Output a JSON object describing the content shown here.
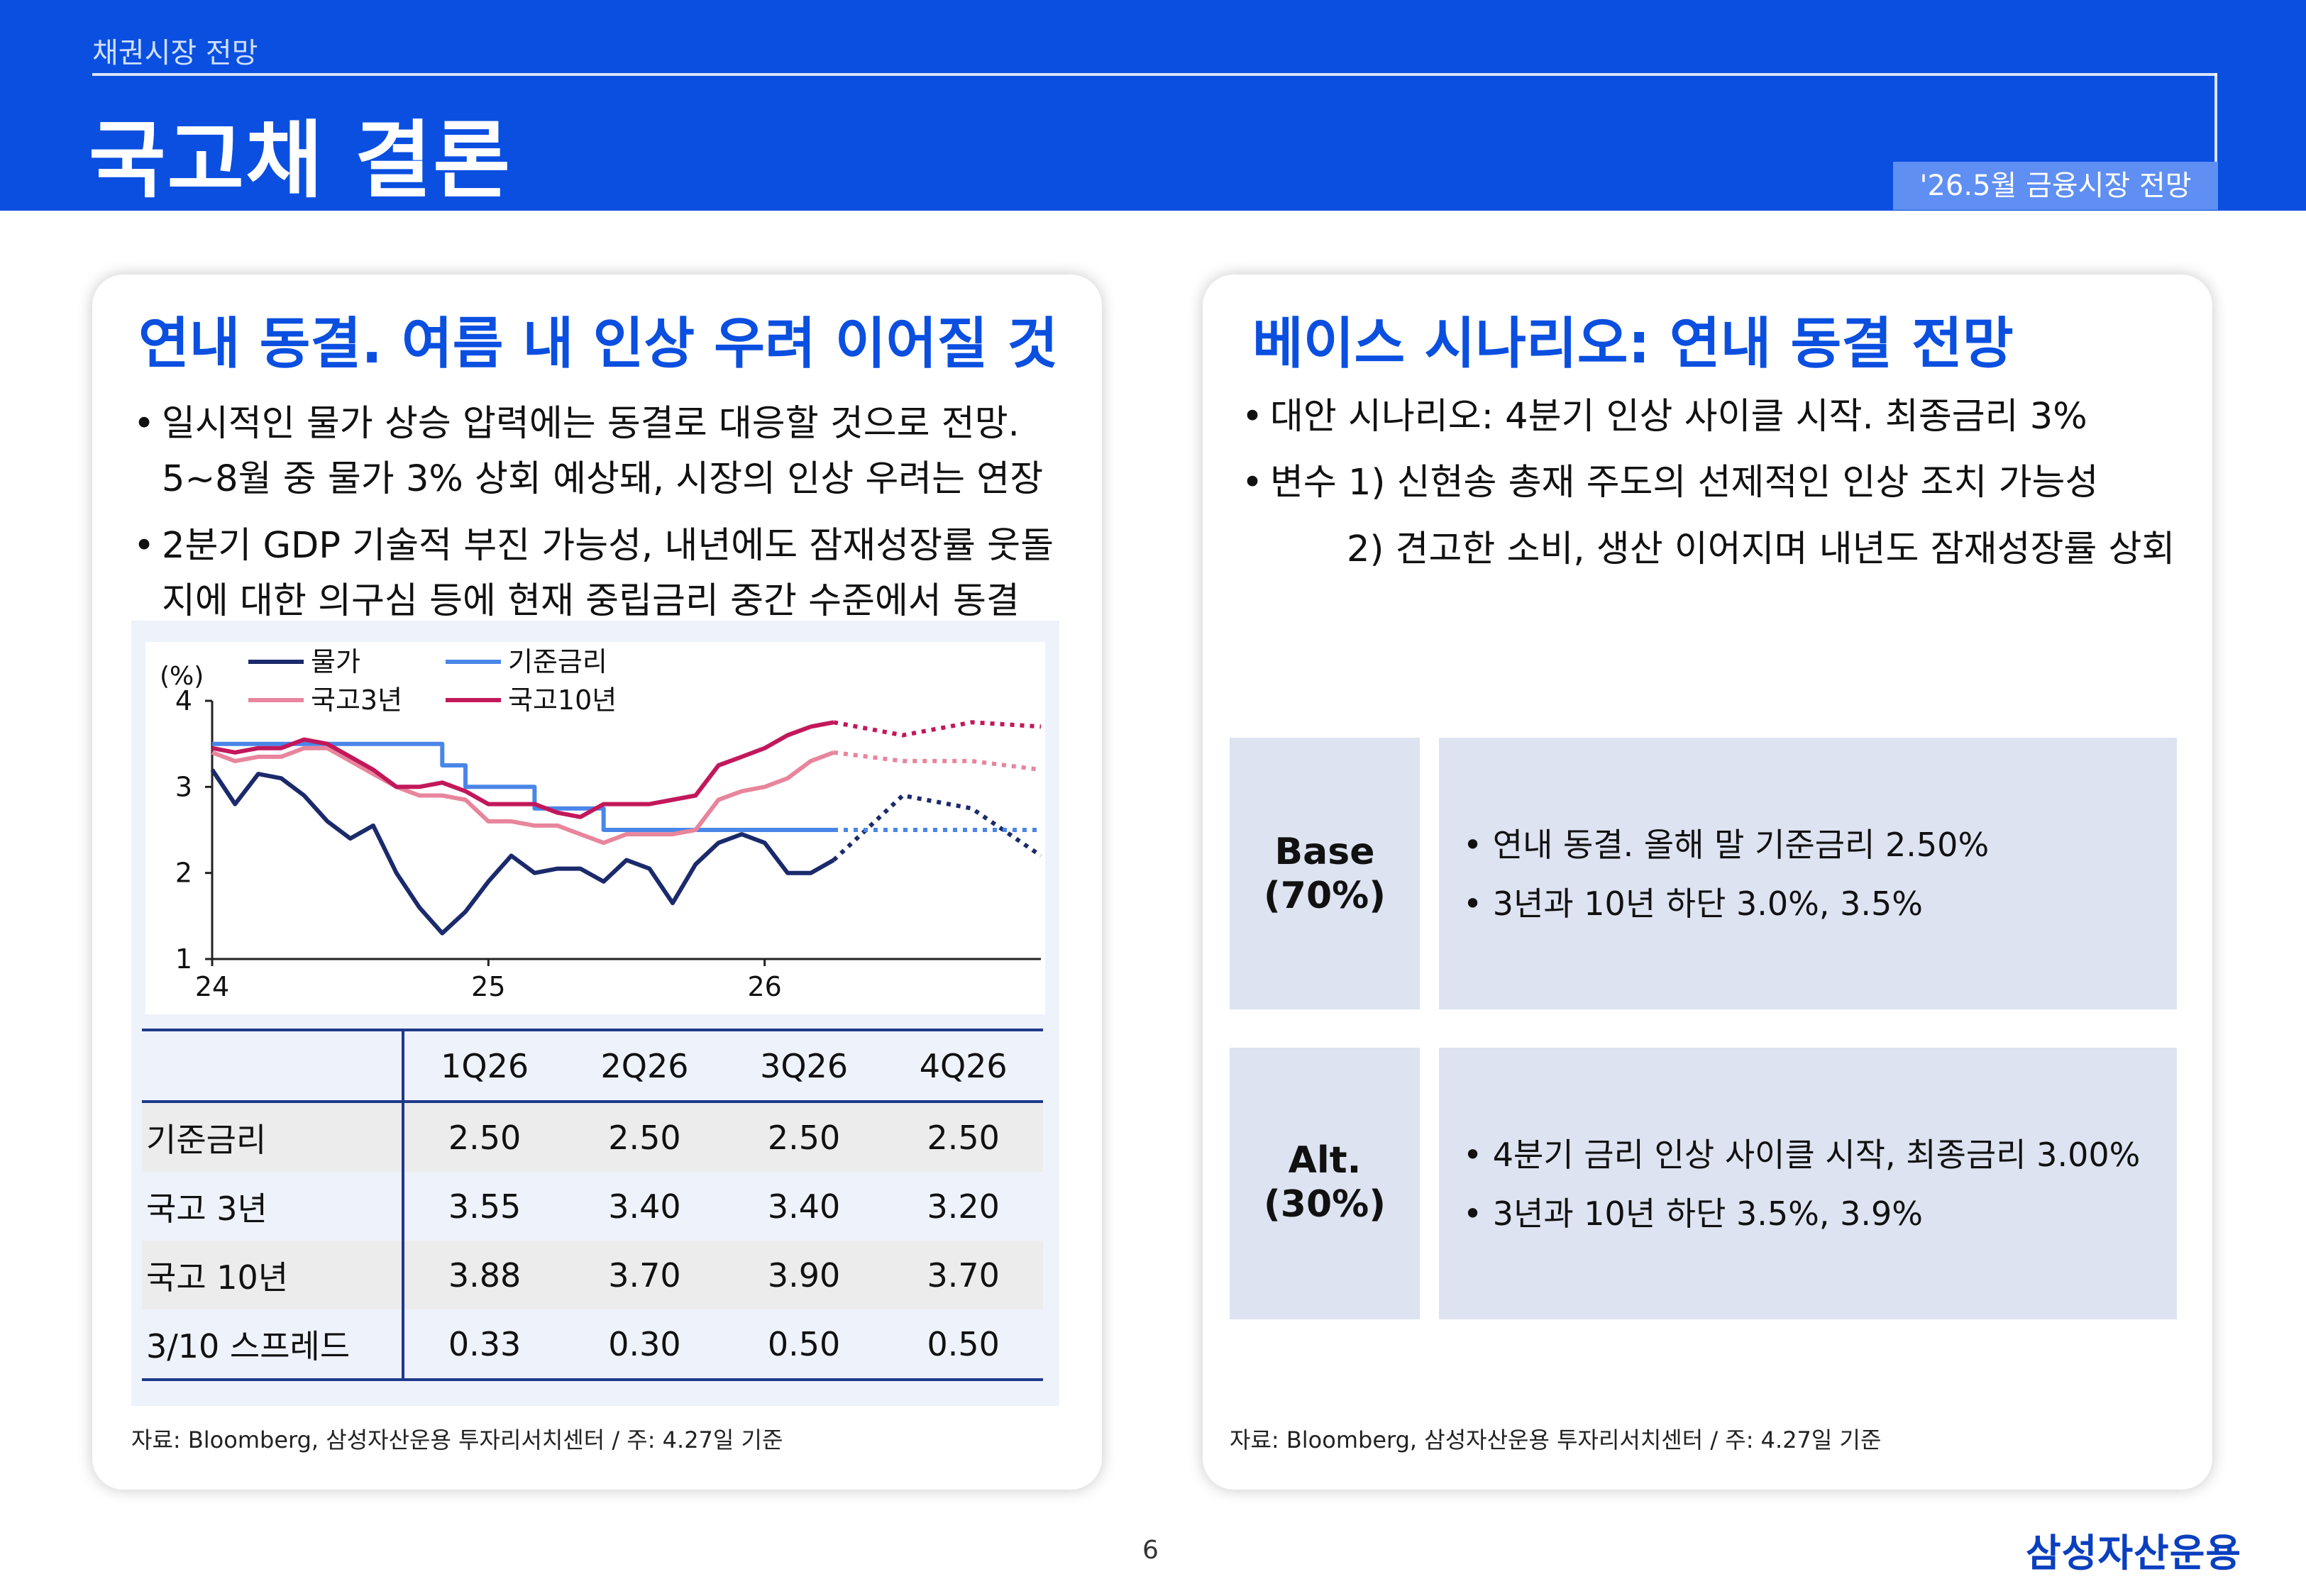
{
  "header": {
    "section_label": "채권시장 전망",
    "title": "국고채 결론",
    "date_tag": "'26.5월 금융시장 전망"
  },
  "left": {
    "heading": "연내 동결. 여름 내 인상 우려 이어질 것",
    "bullets": [
      "일시적인 물가 상승 압력에는 동결로 대응할 것으로 전망.",
      "5~8월 중 물가 3% 상회 예상돼, 시장의 인상 우려는 연장",
      "2분기 GDP 기술적 부진 가능성, 내년에도 잠재성장률 웃돌",
      "지에 대한 의구심 등에 현재 중립금리 중간 수준에서 동결"
    ],
    "table": {
      "columns": [
        "1Q26",
        "2Q26",
        "3Q26",
        "4Q26"
      ],
      "rows": [
        {
          "label": "기준금리",
          "values": [
            "2.50",
            "2.50",
            "2.50",
            "2.50"
          ]
        },
        {
          "label": "국고 3년",
          "values": [
            "3.55",
            "3.40",
            "3.40",
            "3.20"
          ]
        },
        {
          "label": "국고 10년",
          "values": [
            "3.88",
            "3.70",
            "3.90",
            "3.70"
          ]
        },
        {
          "label": "3/10 스프레드",
          "values": [
            "0.33",
            "0.30",
            "0.50",
            "0.50"
          ]
        }
      ]
    },
    "source": "자료: Bloomberg, 삼성자산운용 투자리서치센터 / 주: 4.27일 기준"
  },
  "chart_data": {
    "type": "line",
    "ylabel": "(%)",
    "ylim": [
      1,
      4
    ],
    "yticks": [
      "4",
      "3",
      "2",
      "1"
    ],
    "xticks": [
      "24",
      "25",
      "26"
    ],
    "x_range": [
      2024.0,
      2027.0
    ],
    "forecast_start": 2026.25,
    "series": [
      {
        "name": "물가",
        "color": "#1b2a6b",
        "x": [
          2024.0,
          2024.083,
          2024.167,
          2024.25,
          2024.333,
          2024.417,
          2024.5,
          2024.583,
          2024.667,
          2024.75,
          2024.833,
          2024.917,
          2025.0,
          2025.083,
          2025.167,
          2025.25,
          2025.333,
          2025.417,
          2025.5,
          2025.583,
          2025.667,
          2025.75,
          2025.833,
          2025.917,
          2026.0,
          2026.083,
          2026.167,
          2026.25,
          2026.5,
          2026.75,
          2027.0
        ],
        "values": [
          3.2,
          2.8,
          3.15,
          3.1,
          2.9,
          2.6,
          2.4,
          2.55,
          2.0,
          1.6,
          1.3,
          1.55,
          1.9,
          2.2,
          2.0,
          2.05,
          2.05,
          1.9,
          2.15,
          2.05,
          1.65,
          2.1,
          2.35,
          2.45,
          2.35,
          2.0,
          2.0,
          2.15,
          2.9,
          2.75,
          2.2
        ]
      },
      {
        "name": "기준금리",
        "color": "#4a86e8",
        "x": [
          2024.0,
          2024.833,
          2024.833,
          2024.917,
          2024.917,
          2025.167,
          2025.167,
          2025.417,
          2025.417,
          2026.25,
          2027.0
        ],
        "values": [
          3.5,
          3.5,
          3.25,
          3.25,
          3.0,
          3.0,
          2.75,
          2.75,
          2.5,
          2.5,
          2.5
        ]
      },
      {
        "name": "국고3년",
        "color": "#e8859c",
        "x": [
          2024.0,
          2024.083,
          2024.167,
          2024.25,
          2024.333,
          2024.417,
          2024.5,
          2024.583,
          2024.667,
          2024.75,
          2024.833,
          2024.917,
          2025.0,
          2025.083,
          2025.167,
          2025.25,
          2025.333,
          2025.417,
          2025.5,
          2025.583,
          2025.667,
          2025.75,
          2025.833,
          2025.917,
          2026.0,
          2026.083,
          2026.167,
          2026.25,
          2026.5,
          2026.75,
          2027.0
        ],
        "values": [
          3.4,
          3.3,
          3.35,
          3.35,
          3.45,
          3.45,
          3.3,
          3.15,
          3.0,
          2.9,
          2.9,
          2.85,
          2.6,
          2.6,
          2.55,
          2.55,
          2.45,
          2.35,
          2.45,
          2.45,
          2.45,
          2.5,
          2.85,
          2.95,
          3.0,
          3.1,
          3.3,
          3.4,
          3.3,
          3.3,
          3.2
        ]
      },
      {
        "name": "국고10년",
        "color": "#c2185b",
        "x": [
          2024.0,
          2024.083,
          2024.167,
          2024.25,
          2024.333,
          2024.417,
          2024.5,
          2024.583,
          2024.667,
          2024.75,
          2024.833,
          2024.917,
          2025.0,
          2025.083,
          2025.167,
          2025.25,
          2025.333,
          2025.417,
          2025.5,
          2025.583,
          2025.667,
          2025.75,
          2025.833,
          2025.917,
          2026.0,
          2026.083,
          2026.167,
          2026.25,
          2026.5,
          2026.75,
          2027.0
        ],
        "values": [
          3.45,
          3.4,
          3.45,
          3.45,
          3.55,
          3.5,
          3.35,
          3.2,
          3.0,
          3.0,
          3.05,
          2.95,
          2.8,
          2.8,
          2.8,
          2.7,
          2.65,
          2.8,
          2.8,
          2.8,
          2.85,
          2.9,
          3.25,
          3.35,
          3.45,
          3.6,
          3.7,
          3.75,
          3.6,
          3.75,
          3.7
        ]
      }
    ]
  },
  "right": {
    "heading": "베이스 시나리오: 연내 동결 전망",
    "bullets": [
      "대안 시나리오: 4분기 인상 사이클 시작. 최종금리 3%",
      "변수 1) 신현송 총재 주도의 선제적인 인상 조치 가능성"
    ],
    "bullet_cont": "2) 견고한 소비, 생산 이어지며 내년도 잠재성장률 상회",
    "scenarios": [
      {
        "label_1": "Base",
        "label_2": "(70%)",
        "lines": [
          "연내 동결. 올해 말 기준금리 2.50%",
          "3년과 10년 하단 3.0%, 3.5%"
        ]
      },
      {
        "label_1": "Alt.",
        "label_2": "(30%)",
        "lines": [
          "4분기 금리 인상 사이클 시작, 최종금리 3.00%",
          "3년과 10년 하단 3.5%, 3.9%"
        ]
      }
    ],
    "source": "자료: Bloomberg, 삼성자산운용 투자리서치센터 / 주: 4.27일 기준"
  },
  "footer": {
    "page_number": "6",
    "logo": "삼성자산운용"
  }
}
